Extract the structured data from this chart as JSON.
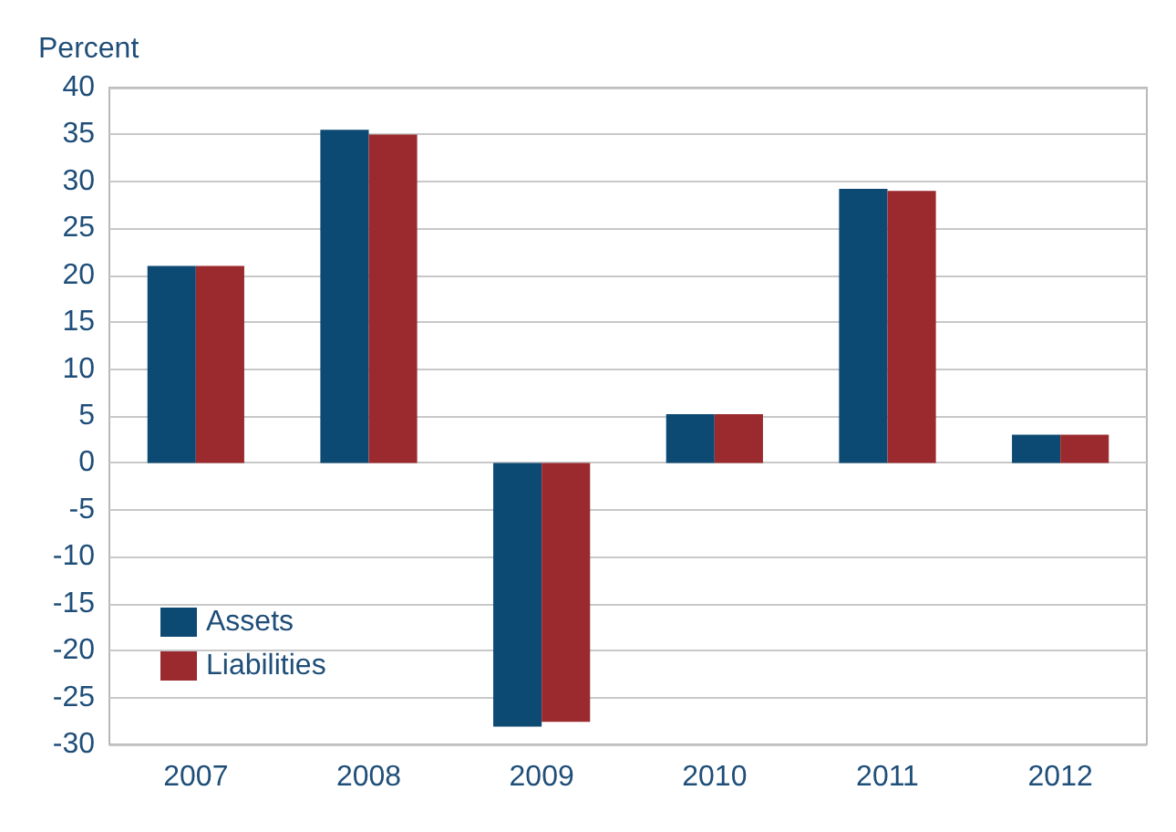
{
  "chart_data": {
    "type": "bar",
    "ylabel": "Percent",
    "categories": [
      "2007",
      "2008",
      "2009",
      "2010",
      "2011",
      "2012"
    ],
    "series": [
      {
        "name": "Assets",
        "color": "#0d4a73",
        "values": [
          21,
          35.5,
          -28.1,
          5.2,
          29.2,
          3
        ]
      },
      {
        "name": "Liabilities",
        "color": "#9b2a2e",
        "values": [
          21,
          35,
          -27.6,
          5.2,
          29,
          3
        ]
      }
    ],
    "ylim": [
      -30,
      40
    ],
    "yticks": [
      -30,
      -25,
      -20,
      -15,
      -10,
      -5,
      0,
      5,
      10,
      15,
      20,
      25,
      30,
      35,
      40
    ],
    "grid": "y",
    "legend": "left"
  }
}
